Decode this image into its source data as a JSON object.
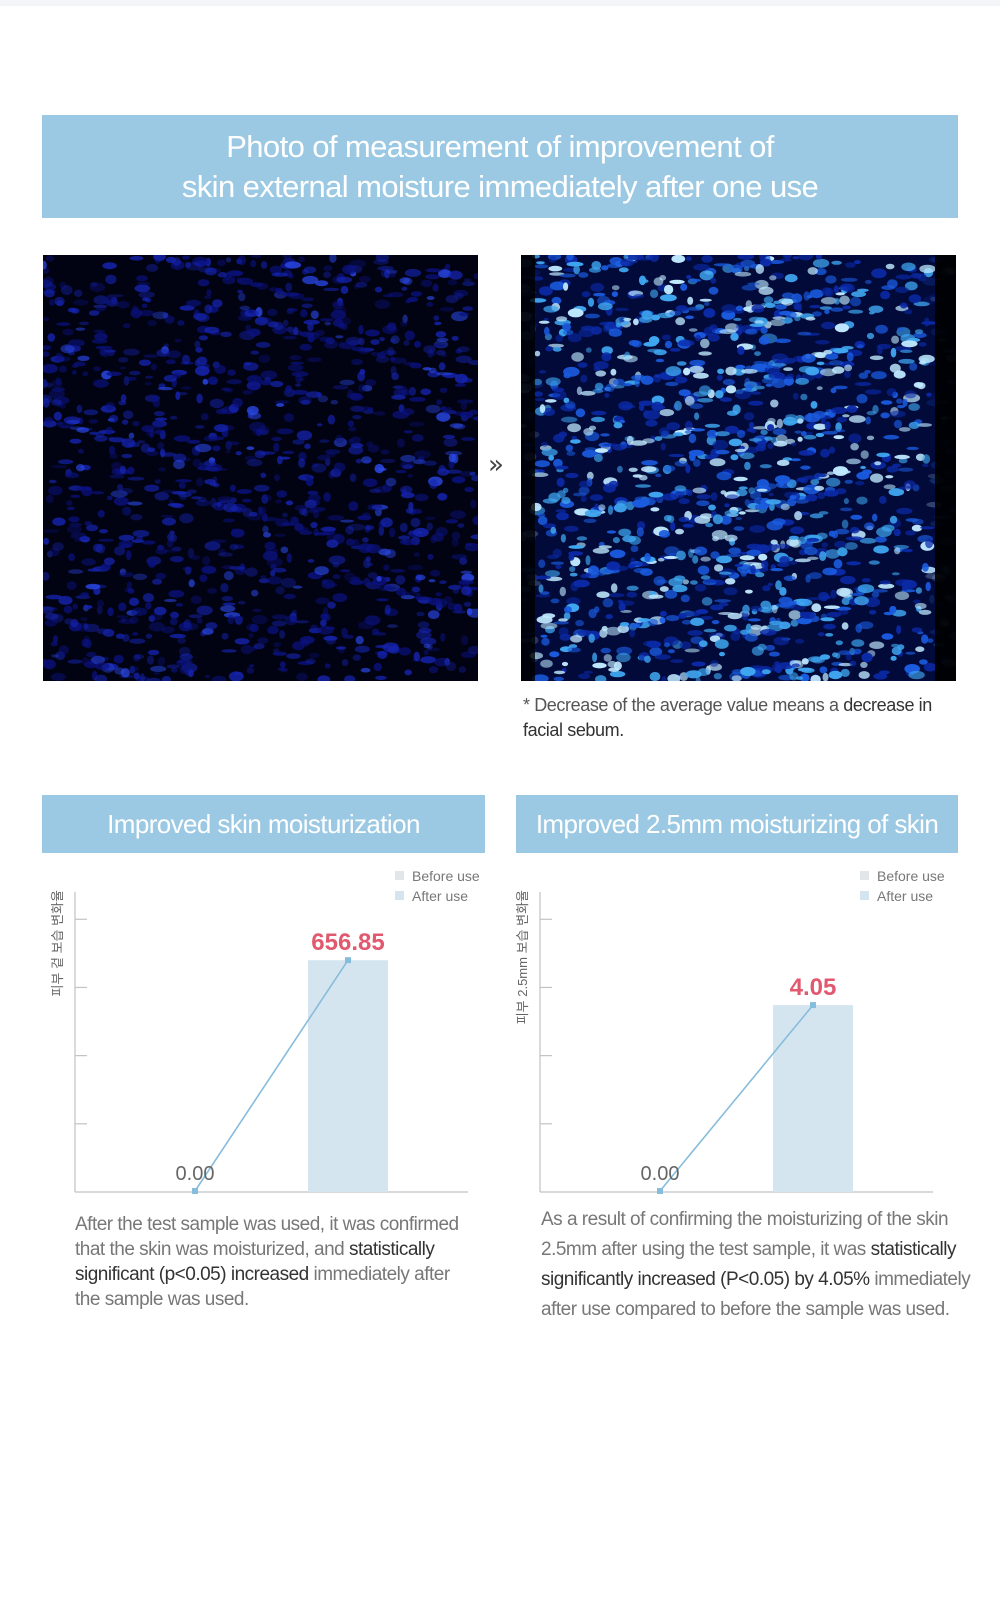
{
  "banner": {
    "line1": "Photo of measurement of improvement of",
    "line2": "skin external moisture immediately after one use"
  },
  "photos": {
    "arrow_glyph": "»",
    "before_tone": "#0a1aa8",
    "after_tone": "#3aa0ff"
  },
  "footnote": {
    "part1": "* Decrease of the average value means a ",
    "bold": "decrease in facial sebum."
  },
  "sections": {
    "left_title": "Improved skin moisturization",
    "right_title": "Improved 2.5mm moisturizing of skin"
  },
  "chart_data": [
    {
      "type": "bar",
      "ylabel": "피부 겉 보습 변화율",
      "categories": [
        "Before use",
        "After use"
      ],
      "values": [
        0.0,
        656.85
      ],
      "value_labels": [
        "0.00",
        "656.85"
      ],
      "ylim": [
        0,
        850
      ],
      "legend": [
        "Before use",
        "After use"
      ],
      "legend_position": "top-right",
      "colors": {
        "before": "#e3e6e9",
        "after": "#d5e5f0",
        "line": "#86bcdc",
        "highlight": "#e0596f"
      }
    },
    {
      "type": "bar",
      "ylabel": "피부 2.5mm 보습 변화율",
      "categories": [
        "Before use",
        "After use"
      ],
      "values": [
        0.0,
        4.05
      ],
      "value_labels": [
        "0.00",
        "4.05"
      ],
      "ylim": [
        0,
        6.5
      ],
      "legend": [
        "Before use",
        "After use"
      ],
      "legend_position": "top-right",
      "colors": {
        "before": "#e3e6e9",
        "after": "#d5e5f0",
        "line": "#86bcdc",
        "highlight": "#e0596f"
      }
    }
  ],
  "descriptions": {
    "left": {
      "part1": "After the test sample was used, it was confirmed that the skin was moisturized, and ",
      "bold": "statistically significant (p<0.05) increased",
      "part2": " immediately after the sample was used."
    },
    "right": {
      "part1": "As a result of confirming the moisturizing of the skin 2.5mm after using the test sample, it was ",
      "bold": "statistically significantly increased (P<0.05) by 4.05%",
      "part2": " immediately after use compared to before the sample was used."
    }
  }
}
